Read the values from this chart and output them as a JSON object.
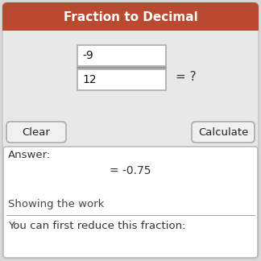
{
  "title": "Fraction to Decimal",
  "title_bg": "#b94a30",
  "title_color": "#ffffff",
  "title_fontsize": 11,
  "bg_color": "#e8e8e8",
  "outer_bg": "#d8d8d8",
  "numerator": "-9",
  "denominator": "12",
  "equals_question": "= ?",
  "answer_label": "Answer:",
  "answer_value": "= -0.75",
  "showing_work": "Showing the work",
  "reduce_text": "You can first reduce this fraction:",
  "clear_btn": "Clear",
  "calculate_btn": "Calculate",
  "input_box_color": "#ffffff",
  "input_border": "#aaaaaa",
  "button_bg": "#f0f0f0",
  "button_border": "#aaaaaa",
  "answer_box_bg": "#ffffff",
  "answer_box_border": "#bbbbbb",
  "answer_value_color": "#333333",
  "showing_work_color": "#444444",
  "reduce_text_color": "#333333",
  "answer_label_color": "#333333",
  "divider_color": "#aaaaaa",
  "outer_border": "#cccccc"
}
